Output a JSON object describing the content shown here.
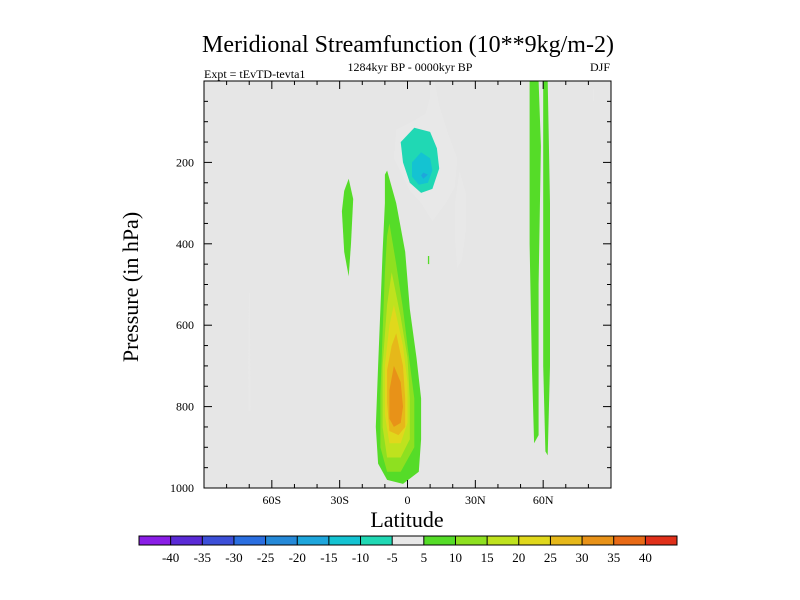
{
  "chart_data": {
    "type": "heatmap",
    "title": "Meridional Streamfunction (10**9kg/m-2)",
    "subtitle_left": "Expt = tEvTD-tevta1",
    "subtitle_center": "1284kyr BP - 0000kyr BP",
    "subtitle_right": "DJF",
    "xlabel": "Latitude",
    "ylabel": "Pressure (in hPa)",
    "xlim": [
      -90,
      90
    ],
    "ylim": [
      1000,
      0
    ],
    "x_ticks": [
      {
        "value": -60,
        "label": "60S"
      },
      {
        "value": -30,
        "label": "30S"
      },
      {
        "value": 0,
        "label": "0"
      },
      {
        "value": 30,
        "label": "30N"
      },
      {
        "value": 60,
        "label": "60N"
      }
    ],
    "y_ticks": [
      {
        "value": 200,
        "label": "200"
      },
      {
        "value": 400,
        "label": "400"
      },
      {
        "value": 600,
        "label": "600"
      },
      {
        "value": 800,
        "label": "800"
      },
      {
        "value": 1000,
        "label": "1000"
      }
    ],
    "background_color": "#e6e6e6",
    "colorbar": {
      "levels": [
        -40,
        -35,
        -30,
        -25,
        -20,
        -15,
        -10,
        -5,
        5,
        10,
        15,
        20,
        25,
        30,
        35,
        40
      ],
      "labels": [
        "-40",
        "-35",
        "-30",
        "-25",
        "-20",
        "-15",
        "-10",
        "-5",
        "5",
        "10",
        "15",
        "20",
        "25",
        "30",
        "35",
        "40"
      ],
      "colors": [
        "#8a1ee6",
        "#5a2ad6",
        "#3c4fd8",
        "#2a6ee0",
        "#2589d8",
        "#1ea6dc",
        "#14c3d2",
        "#20d8b4",
        "#e8e8e8",
        "#55dc28",
        "#8ee020",
        "#bfe21e",
        "#e0d81c",
        "#e6b81a",
        "#e89218",
        "#e86a16",
        "#e0301a"
      ]
    },
    "features": [
      {
        "name": "feature-tropical-positive-cell",
        "value": 30,
        "peak_lat": -4,
        "peak_pressure": 780,
        "rings": [
          {
            "level": 5,
            "points": [
              [
                -9,
                220
              ],
              [
                -5,
                300
              ],
              [
                -1,
                420
              ],
              [
                1,
                560
              ],
              [
                4,
                680
              ],
              [
                6,
                780
              ],
              [
                6,
                880
              ],
              [
                5,
                960
              ],
              [
                -2,
                990
              ],
              [
                -9,
                980
              ],
              [
                -13,
                940
              ],
              [
                -14,
                850
              ],
              [
                -13,
                700
              ],
              [
                -12,
                560
              ],
              [
                -11,
                420
              ],
              [
                -10,
                300
              ],
              [
                -10,
                230
              ]
            ]
          },
          {
            "level": 10,
            "points": [
              [
                -8,
                350
              ],
              [
                -5,
                450
              ],
              [
                -2,
                560
              ],
              [
                0,
                650
              ],
              [
                3,
                780
              ],
              [
                3,
                900
              ],
              [
                -3,
                960
              ],
              [
                -9,
                960
              ],
              [
                -12,
                900
              ],
              [
                -12,
                770
              ],
              [
                -11,
                620
              ],
              [
                -10,
                470
              ],
              [
                -9,
                380
              ]
            ]
          },
          {
            "level": 15,
            "points": [
              [
                -7,
                470
              ],
              [
                -3,
                580
              ],
              [
                0,
                680
              ],
              [
                1,
                780
              ],
              [
                1,
                880
              ],
              [
                -3,
                925
              ],
              [
                -9,
                925
              ],
              [
                -11,
                850
              ],
              [
                -11,
                700
              ],
              [
                -9,
                550
              ]
            ]
          },
          {
            "level": 20,
            "points": [
              [
                -6,
                550
              ],
              [
                -2,
                650
              ],
              [
                0,
                740
              ],
              [
                0,
                840
              ],
              [
                -3,
                890
              ],
              [
                -8,
                890
              ],
              [
                -10,
                820
              ],
              [
                -10,
                700
              ],
              [
                -8,
                600
              ]
            ]
          },
          {
            "level": 25,
            "points": [
              [
                -5,
                620
              ],
              [
                -2,
                700
              ],
              [
                -1,
                780
              ],
              [
                -1,
                850
              ],
              [
                -4,
                870
              ],
              [
                -8,
                860
              ],
              [
                -9,
                790
              ],
              [
                -9,
                710
              ],
              [
                -7,
                650
              ]
            ]
          },
          {
            "level": 30,
            "points": [
              [
                -6,
                700
              ],
              [
                -3,
                740
              ],
              [
                -2,
                800
              ],
              [
                -3,
                840
              ],
              [
                -6,
                850
              ],
              [
                -8,
                830
              ],
              [
                -8,
                760
              ]
            ]
          }
        ]
      },
      {
        "name": "feature-upper-negative-cell",
        "value": -20,
        "peak_lat": 8,
        "peak_pressure": 230,
        "rings": [
          {
            "level": -5,
            "points": [
              [
                10,
                0
              ],
              [
                12,
                0
              ],
              [
                14,
                60
              ],
              [
                18,
                130
              ],
              [
                22,
                190
              ],
              [
                21,
                260
              ],
              [
                17,
                300
              ],
              [
                11,
                345
              ],
              [
                6,
                300
              ],
              [
                1,
                270
              ],
              [
                -6,
                190
              ],
              [
                -5,
                120
              ],
              [
                2,
                100
              ],
              [
                8,
                80
              ],
              [
                10,
                40
              ]
            ]
          },
          {
            "level": -10,
            "points": [
              [
                3,
                115
              ],
              [
                10,
                125
              ],
              [
                13,
                165
              ],
              [
                14,
                215
              ],
              [
                11,
                265
              ],
              [
                6,
                275
              ],
              [
                1,
                250
              ],
              [
                -2,
                200
              ],
              [
                -3,
                150
              ]
            ]
          },
          {
            "level": -15,
            "points": [
              [
                6,
                175
              ],
              [
                10,
                190
              ],
              [
                11,
                220
              ],
              [
                9,
                250
              ],
              [
                5,
                255
              ],
              [
                2,
                235
              ],
              [
                2,
                200
              ]
            ]
          },
          {
            "level": -20,
            "points": [
              [
                7,
                225
              ],
              [
                9,
                230
              ],
              [
                7,
                240
              ],
              [
                6,
                232
              ]
            ]
          }
        ]
      },
      {
        "name": "feature-southern-subtropic-band",
        "value": 5,
        "rings": [
          {
            "level": 5,
            "points": [
              [
                -26,
                240
              ],
              [
                -24,
                290
              ],
              [
                -25,
                400
              ],
              [
                -26,
                480
              ],
              [
                -28,
                420
              ],
              [
                -29,
                320
              ],
              [
                -28,
                270
              ]
            ]
          }
        ]
      },
      {
        "name": "feature-northern-subtropic-band",
        "value": -5,
        "rings": [
          {
            "level": -5,
            "points": [
              [
                23,
                220
              ],
              [
                26,
                280
              ],
              [
                26,
                360
              ],
              [
                24,
                440
              ],
              [
                22,
                460
              ],
              [
                21,
                390
              ],
              [
                21,
                300
              ],
              [
                22,
                260
              ]
            ]
          }
        ]
      },
      {
        "name": "feature-60N-band-a",
        "value": 5,
        "rings": [
          {
            "level": 5,
            "points": [
              [
                54,
                0
              ],
              [
                58,
                0
              ],
              [
                59,
                160
              ],
              [
                58,
                500
              ],
              [
                58,
                870
              ],
              [
                56,
                890
              ],
              [
                55,
                700
              ],
              [
                54,
                400
              ]
            ]
          }
        ]
      },
      {
        "name": "feature-60N-band-b",
        "value": 5,
        "rings": [
          {
            "level": 5,
            "points": [
              [
                60,
                0
              ],
              [
                62,
                0
              ],
              [
                63,
                300
              ],
              [
                63,
                700
              ],
              [
                62,
                920
              ],
              [
                61,
                910
              ],
              [
                60,
                700
              ],
              [
                60,
                300
              ]
            ]
          }
        ]
      },
      {
        "name": "feature-60S-sliver",
        "value": -5,
        "rings": [
          {
            "level": -5,
            "points": [
              [
                -70.2,
                520
              ],
              [
                -69.6,
                520
              ],
              [
                -69.5,
                700
              ],
              [
                -69.4,
                810
              ],
              [
                -70.3,
                810
              ],
              [
                -70.4,
                690
              ]
            ]
          }
        ]
      },
      {
        "name": "feature-80N-speck",
        "value": -5,
        "rings": [
          {
            "level": -5,
            "points": [
              [
                82,
                20
              ],
              [
                82.6,
                20
              ],
              [
                82.6,
                50
              ],
              [
                82,
                50
              ]
            ]
          }
        ]
      },
      {
        "name": "feature-eq-speck",
        "value": 5,
        "rings": [
          {
            "level": 5,
            "points": [
              [
                9,
                430
              ],
              [
                9.6,
                430
              ],
              [
                9.6,
                450
              ],
              [
                9,
                450
              ]
            ]
          }
        ]
      }
    ]
  }
}
